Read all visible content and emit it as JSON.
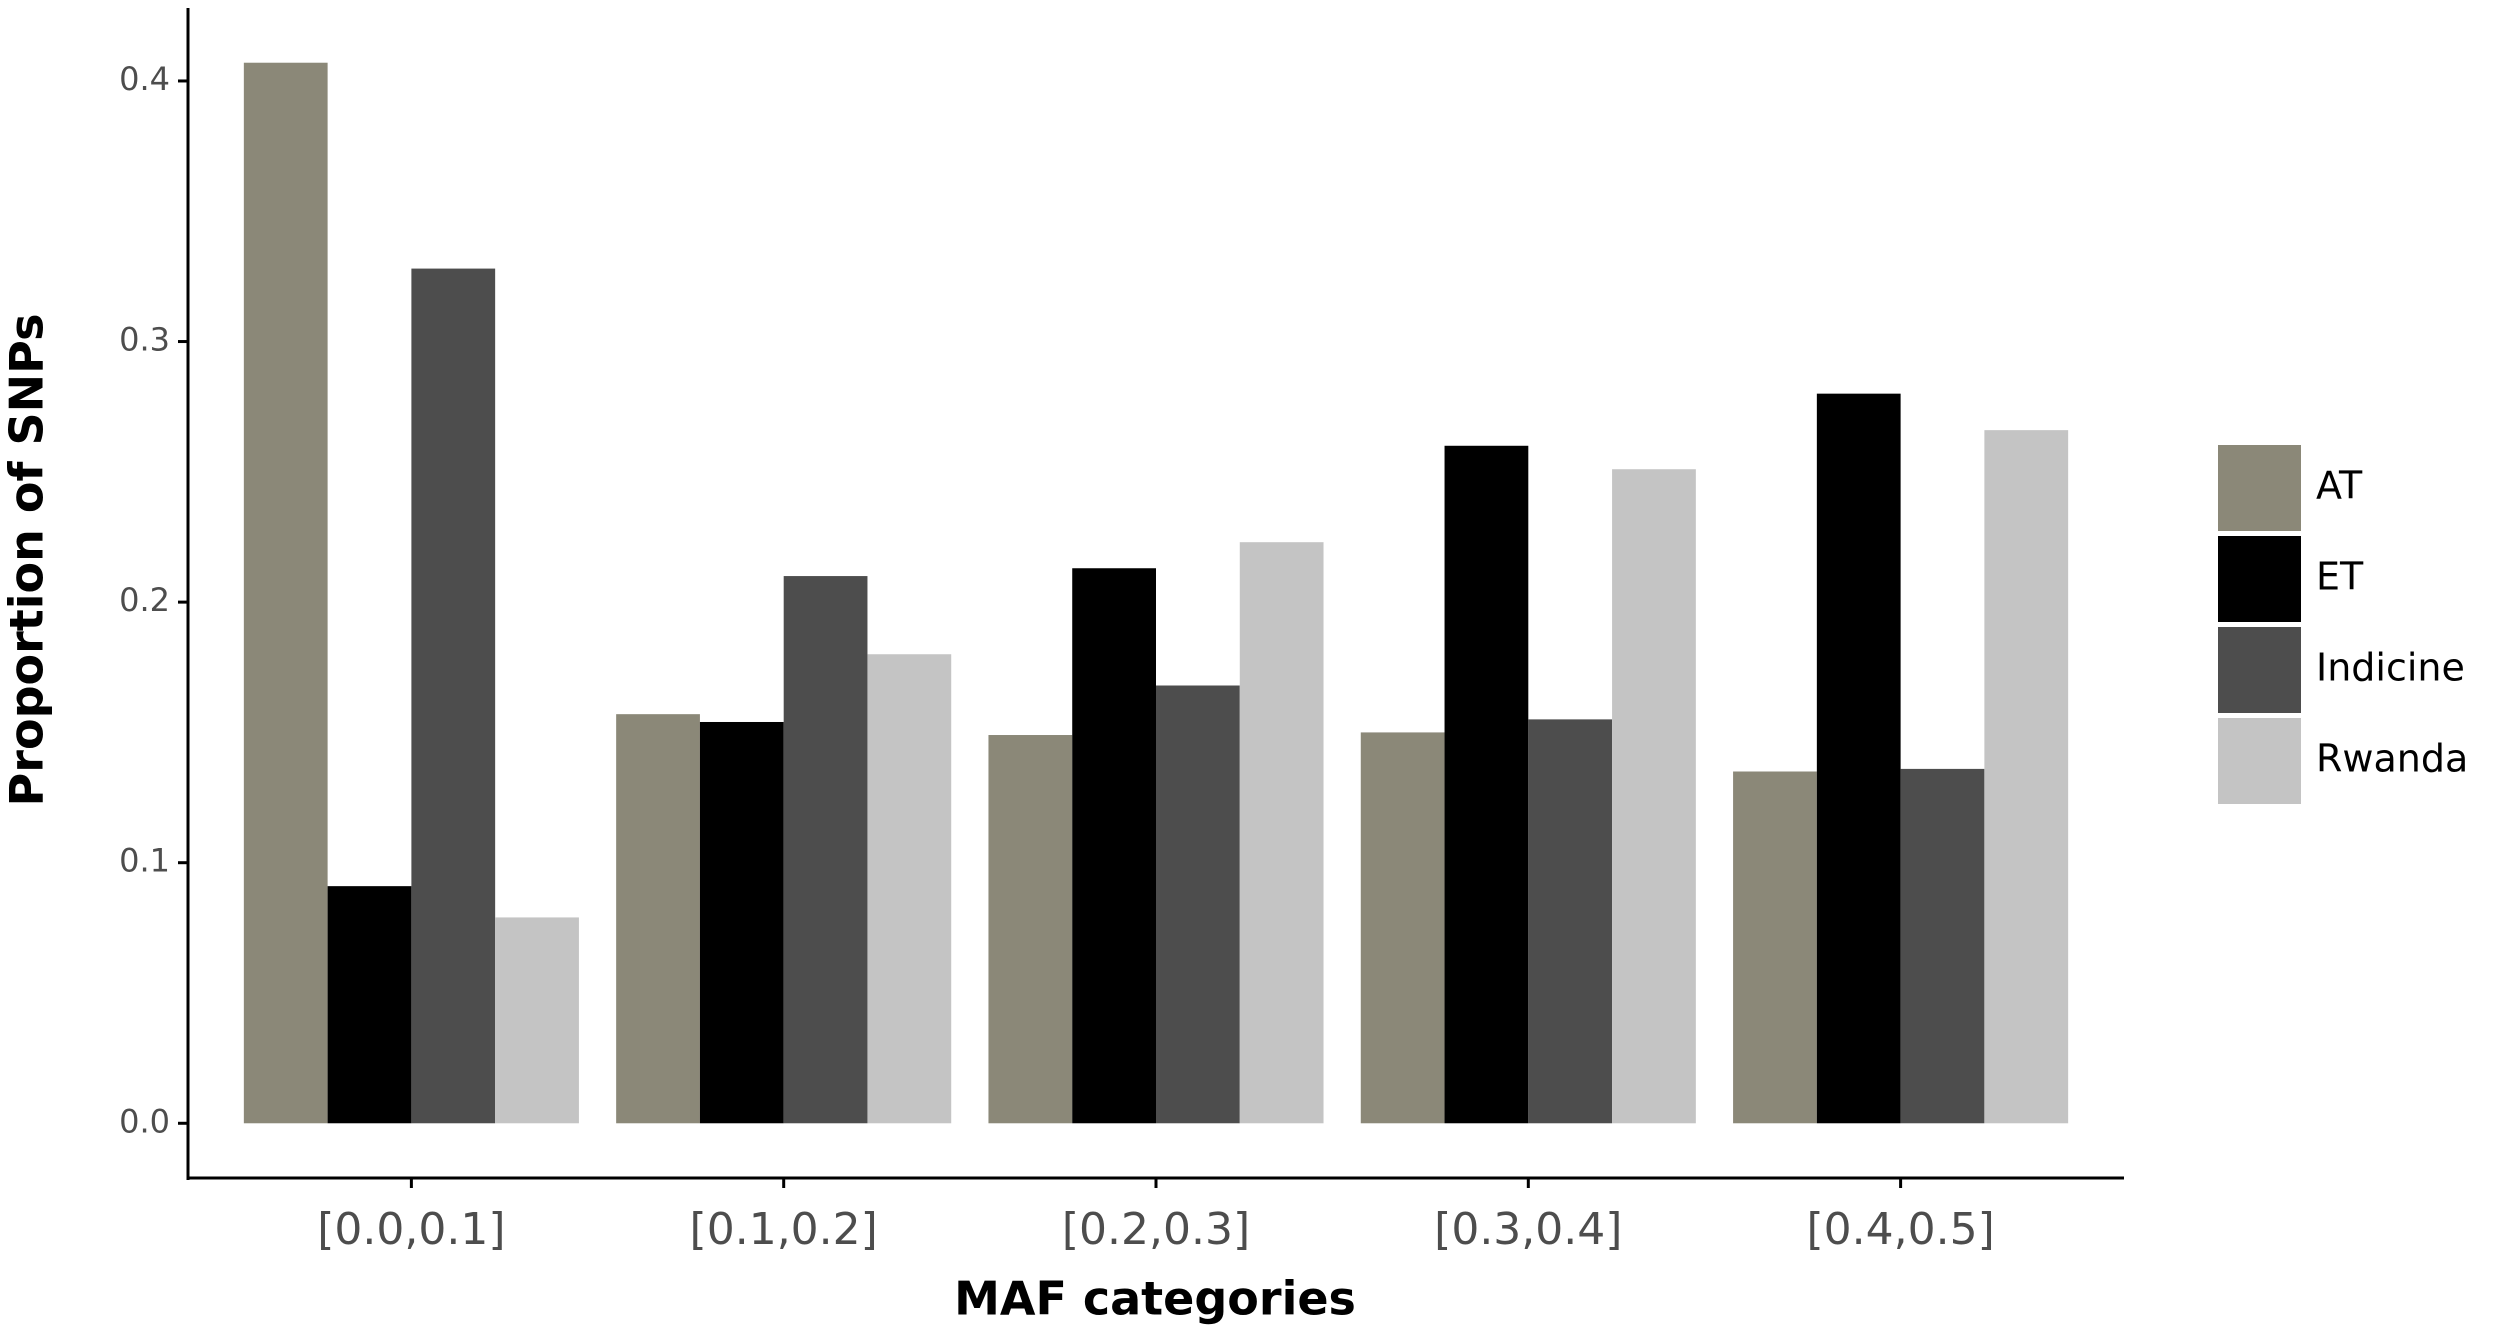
{
  "chart_data": {
    "type": "bar",
    "x_label": "MAF categories",
    "y_label": "Proportion of SNPs",
    "categories": [
      "[0.0,0.1]",
      "[0.1,0.2]",
      "[0.2,0.3]",
      "[0.3,0.4]",
      "[0.4,0.5]"
    ],
    "series": [
      {
        "name": "AT",
        "color": "#8b8878",
        "values": [
          0.407,
          0.157,
          0.149,
          0.15,
          0.135
        ]
      },
      {
        "name": "ET",
        "color": "#000000",
        "values": [
          0.091,
          0.154,
          0.213,
          0.26,
          0.28
        ]
      },
      {
        "name": "Indicine",
        "color": "#4d4d4d",
        "values": [
          0.328,
          0.21,
          0.168,
          0.155,
          0.136
        ]
      },
      {
        "name": "Rwanda",
        "color": "#c4c4c4",
        "values": [
          0.079,
          0.18,
          0.223,
          0.251,
          0.266
        ]
      }
    ],
    "ylim": [
      -0.021,
      0.428
    ],
    "yticks": [
      {
        "value": 0,
        "label": "0.0"
      },
      0.1,
      0.2,
      0.3,
      0.4
    ],
    "grid": false,
    "legend": "right"
  }
}
